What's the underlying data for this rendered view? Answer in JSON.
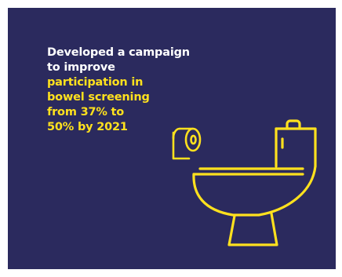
{
  "colors": {
    "background": "#2b2a5e",
    "text_white": "#ffffff",
    "text_highlight": "#ffe11e",
    "icon_stroke": "#ffe11e"
  },
  "headline": {
    "line1": "Developed a campaign",
    "line2": "to  improve",
    "line3": "participation in",
    "line4": "bowel screening",
    "line5": "from 37% to",
    "line6": "50% by 2021"
  },
  "icons": {
    "toilet_paper": "toilet-paper-icon",
    "toilet": "toilet-icon"
  }
}
